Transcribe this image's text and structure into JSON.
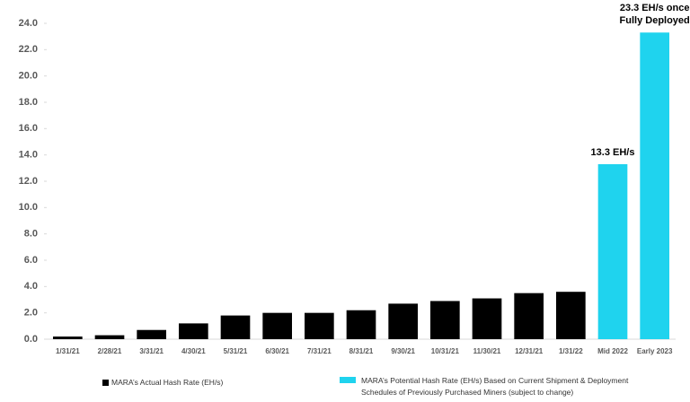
{
  "chart_data": {
    "type": "bar",
    "categories": [
      "1/31/21",
      "2/28/21",
      "3/31/21",
      "4/30/21",
      "5/31/21",
      "6/30/21",
      "7/31/21",
      "8/31/21",
      "9/30/21",
      "10/31/21",
      "11/30/21",
      "12/31/21",
      "1/31/22",
      "Mid 2022",
      "Early 2023"
    ],
    "series": [
      {
        "name": "MARA’s Actual Hash Rate (EH/s)",
        "color": "#000000",
        "values": [
          0.2,
          0.3,
          0.7,
          1.2,
          1.8,
          2.0,
          2.0,
          2.2,
          2.7,
          2.9,
          3.1,
          3.5,
          3.6,
          null,
          null
        ]
      },
      {
        "name": "MARA’s Potential Hash Rate (EH/s) Based on Current Shipment & Deployment Schedules of Previously Purchased Miners (subject to change)",
        "color": "#1fd3ee",
        "values": [
          null,
          null,
          null,
          null,
          null,
          null,
          null,
          null,
          null,
          null,
          null,
          null,
          null,
          13.3,
          23.3
        ],
        "value_labels": [
          null,
          null,
          null,
          null,
          null,
          null,
          null,
          null,
          null,
          null,
          null,
          null,
          null,
          "13.3 EH/s",
          "23.3 EH/s once Fully Deployed"
        ]
      }
    ],
    "ylim": [
      0,
      24
    ],
    "yticks": [
      {
        "value": 0,
        "label": "0.0"
      },
      {
        "value": 2,
        "label": "2.0"
      },
      {
        "value": 4,
        "label": "4.0"
      },
      {
        "value": 6,
        "label": "6.0"
      },
      {
        "value": 8,
        "label": "8.0"
      },
      {
        "value": 10,
        "label": "10.0"
      },
      {
        "value": 12,
        "label": "12.0"
      },
      {
        "value": 14,
        "label": "14.0"
      },
      {
        "value": 16,
        "label": "16.0"
      },
      {
        "value": 18,
        "label": "18.0"
      },
      {
        "value": 20,
        "label": "20.0"
      },
      {
        "value": 22,
        "label": "22.0"
      },
      {
        "value": 24,
        "label": "24.0"
      }
    ],
    "legend": "bottom"
  }
}
